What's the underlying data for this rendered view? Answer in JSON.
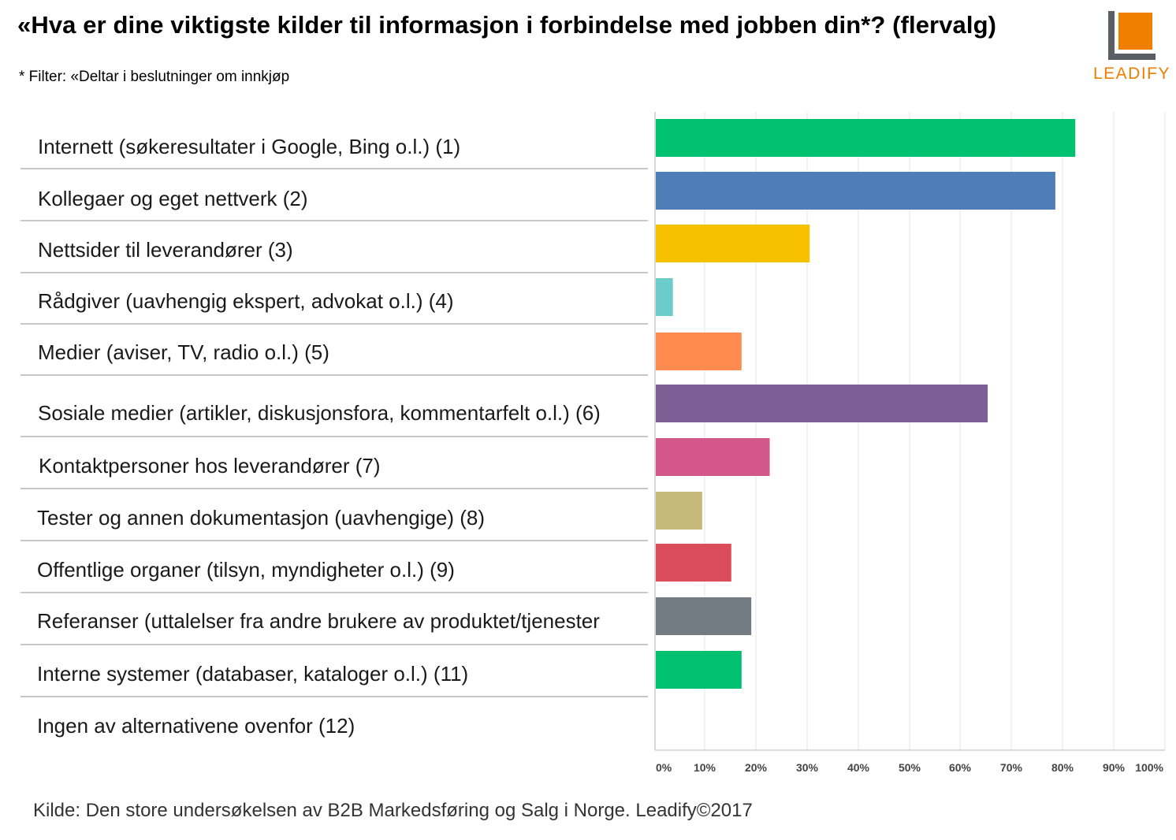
{
  "header": {
    "title": "«Hva er dine viktigste kilder til informasjon i forbindelse med jobben din*? (flervalg)",
    "filter_note": "* Filter: «Deltar i beslutninger om innkjøp"
  },
  "logo": {
    "text": "LEADIFY",
    "accent_color": "#f07f00",
    "mark_color": "#5a5f66"
  },
  "footer": {
    "source": "Kilde: Den store undersøkelsen av B2B Markedsføring og Salg i Norge. Leadify©2017"
  },
  "chart_data": {
    "type": "bar",
    "orientation": "horizontal",
    "categories": [
      "Internett (søkeresultater i Google, Bing o.l.) (1)",
      "Kollegaer og eget nettverk (2)",
      "Nettsider til leverandører (3)",
      "Rådgiver (uavhengig ekspert, advokat o.l.) (4)",
      "Medier (aviser, TV, radio o.l.) (5)",
      "Sosiale medier (artikler, diskusjonsfora, kommentarfelt o.l.) (6)",
      "Kontaktpersoner hos leverandører (7)",
      "Tester og annen dokumentasjon (uavhengige) (8)",
      "Offentlige organer (tilsyn, myndigheter o.l.) (9)",
      "Referanser (uttalelser fra andre brukere av produktet/tjenester",
      "Interne systemer (databaser, kataloger o.l.) (11)",
      "Ingen av alternativene ovenfor (12)"
    ],
    "values": [
      82.5,
      78.6,
      30.5,
      3.6,
      17.2,
      65.4,
      22.7,
      9.5,
      15.2,
      19.1,
      17.2,
      0
    ],
    "colors": [
      "#00c170",
      "#4f7db8",
      "#f7c100",
      "#6ccbcb",
      "#ff8c4e",
      "#7e5e94",
      "#d4578c",
      "#c6b979",
      "#dc4d5b",
      "#737b83",
      "#00c170",
      "#00c170"
    ],
    "x_ticks": [
      "0%",
      "10%",
      "20%",
      "30%",
      "40%",
      "50%",
      "60%",
      "70%",
      "80%",
      "90%",
      "100%"
    ],
    "xlim": [
      0,
      100
    ],
    "unit": "%",
    "grid": true
  }
}
